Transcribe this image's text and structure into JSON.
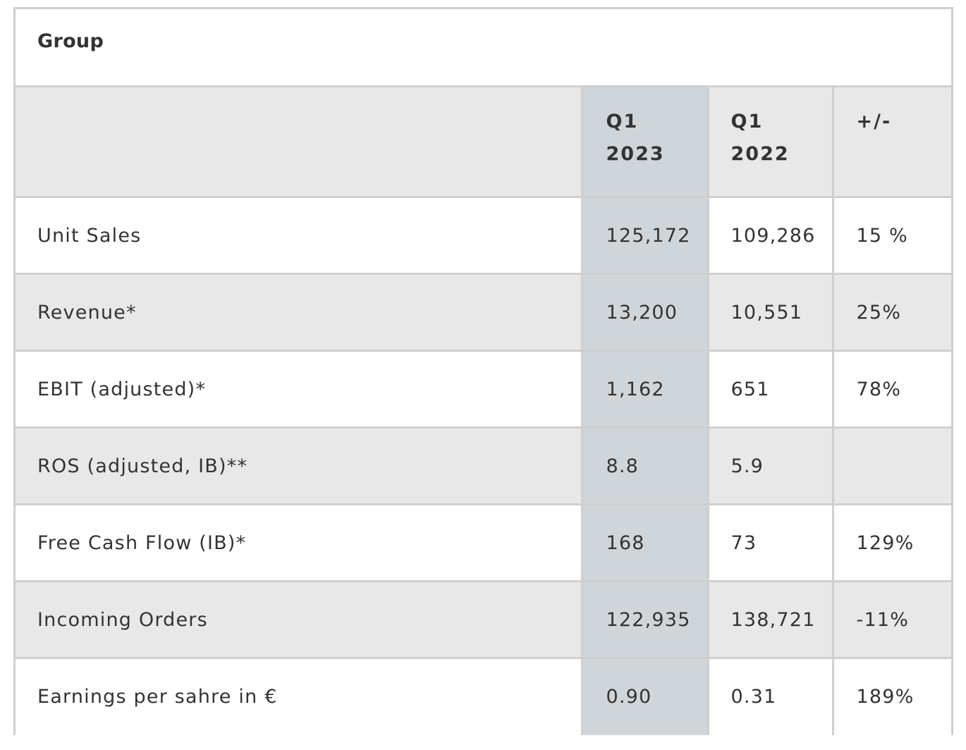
{
  "group_title": "Group",
  "header": {
    "label": "",
    "q1_2023": [
      "Q1",
      "2023"
    ],
    "q1_2022": [
      "Q1",
      "2022"
    ],
    "diff": "+/-"
  },
  "rows": [
    {
      "label": "Unit Sales",
      "q1_2023": "125,172",
      "q1_2022": "109,286",
      "diff": "15 %"
    },
    {
      "label": "Revenue*",
      "q1_2023": "13,200",
      "q1_2022": "10,551",
      "diff": "25%"
    },
    {
      "label": "EBIT (adjusted)*",
      "q1_2023": "1,162",
      "q1_2022": "651",
      "diff": "78%"
    },
    {
      "label": "ROS (adjusted, IB)**",
      "q1_2023": "8.8",
      "q1_2022": "5.9",
      "diff": ""
    },
    {
      "label": "Free Cash Flow (IB)*",
      "q1_2023": "168",
      "q1_2022": "73",
      "diff": "129%"
    },
    {
      "label": "Incoming Orders",
      "q1_2023": "122,935",
      "q1_2022": "138,721",
      "diff": "-11%"
    },
    {
      "label": "Earnings per sahre in €",
      "q1_2023": "0.90",
      "q1_2022": "0.31",
      "diff": "189%"
    }
  ],
  "colors": {
    "border": "#cfcfcf",
    "row_grey": "#e8e8e8",
    "highlight_column": "#d0d5d9",
    "text": "#333333"
  }
}
